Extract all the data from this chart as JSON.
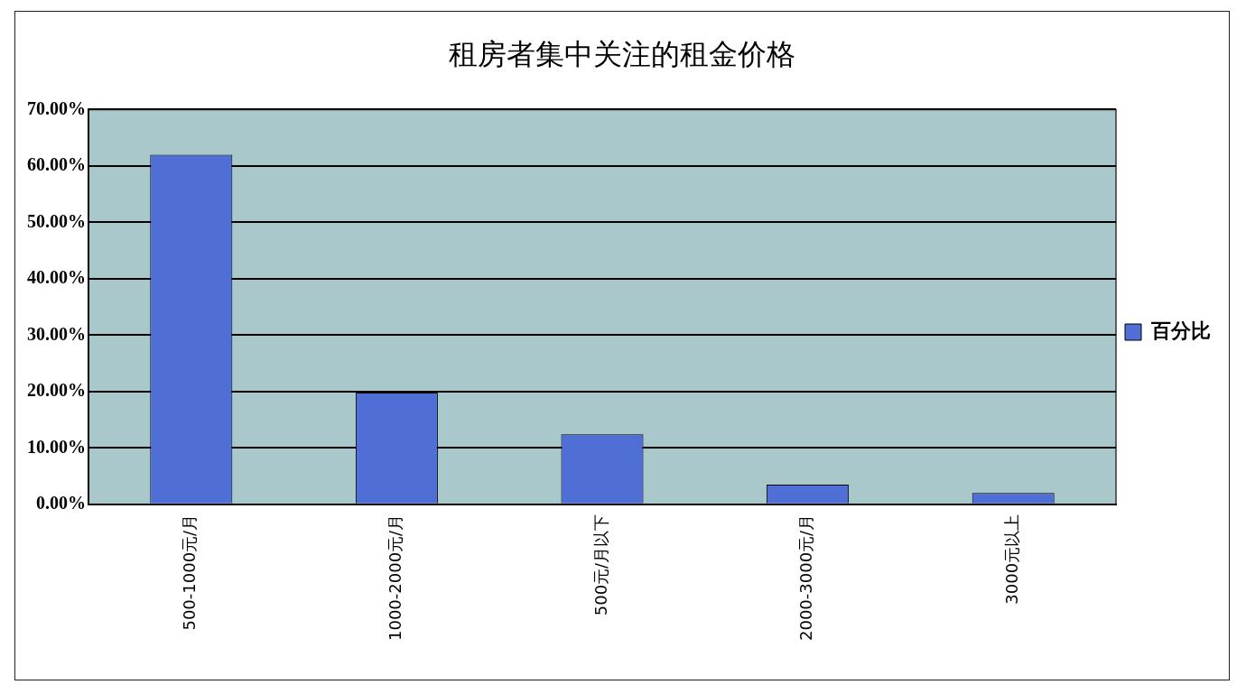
{
  "chart_data": {
    "type": "bar",
    "title": "租房者集中关注的租金价格",
    "categories": [
      "500-1000元/月",
      "1000-2000元/月",
      "500元/月以下",
      "2000-3000元/月",
      "3000元以上"
    ],
    "series": [
      {
        "name": "百分比",
        "color": "#4f6fd6",
        "values": [
          62,
          19.8,
          12.4,
          3.5,
          2
        ]
      }
    ],
    "ylim": [
      0,
      70
    ],
    "yticks": [
      {
        "value": 0,
        "label": "0.00%"
      },
      {
        "value": 10,
        "label": "10.00%"
      },
      {
        "value": 20,
        "label": "20.00%"
      },
      {
        "value": 30,
        "label": "30.00%"
      },
      {
        "value": 40,
        "label": "40.00%"
      },
      {
        "value": 50,
        "label": "50.00%"
      },
      {
        "value": 60,
        "label": "60.00%"
      },
      {
        "value": 70,
        "label": "70.00%"
      }
    ],
    "grid": "y",
    "legend": "right"
  }
}
